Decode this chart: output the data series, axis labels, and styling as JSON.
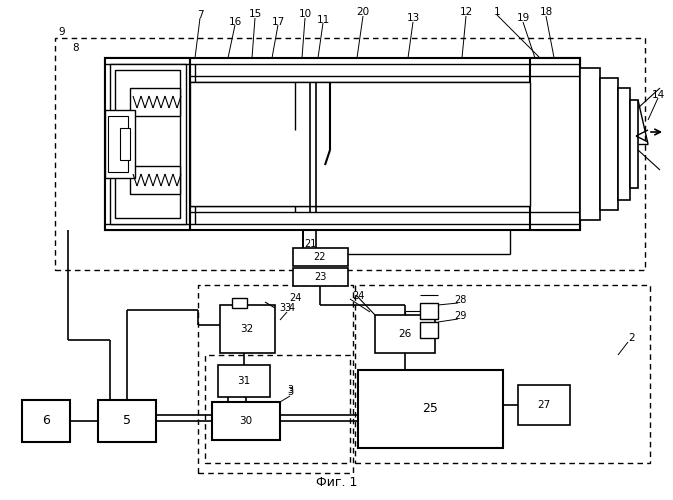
{
  "background_color": "#ffffff",
  "line_color": "#000000",
  "fig_caption": "Фиг. 1"
}
